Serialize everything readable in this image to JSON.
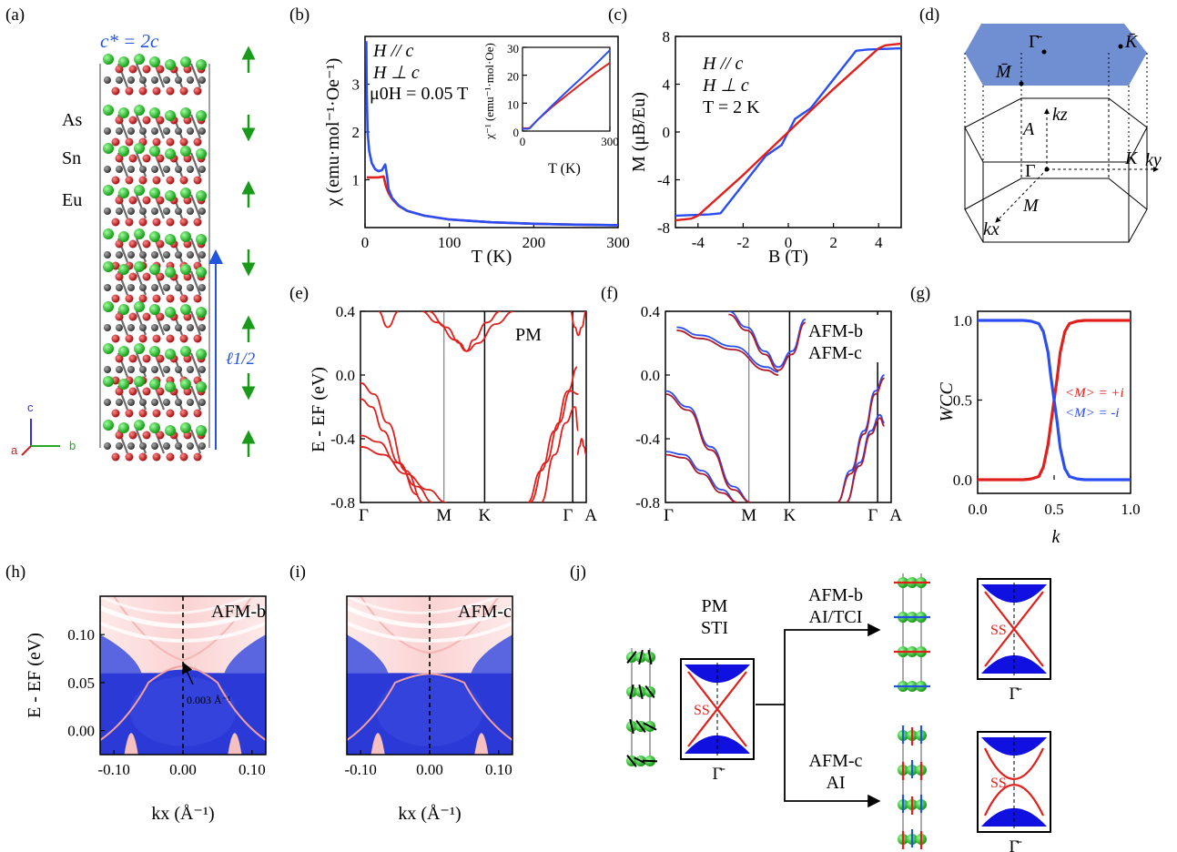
{
  "panel_labels": [
    "(a)",
    "(b)",
    "(c)",
    "(d)",
    "(e)",
    "(f)",
    "(g)",
    "(h)",
    "(i)",
    "(j)"
  ],
  "panel_a": {
    "title": "c* = 2c",
    "atoms": [
      "As",
      "Sn",
      "Eu"
    ],
    "atom_colors": {
      "As": "#cc1f1f",
      "Sn": "#555555",
      "Eu": "#22c02a"
    },
    "period_label": "ℓ1/2",
    "axis_labels": [
      "c",
      "a",
      "b"
    ]
  },
  "chart_data": [
    {
      "id": "b",
      "type": "line",
      "xlabel": "T (K)",
      "ylabel": "χ (emu·mol⁻¹·Oe⁻¹)",
      "xlim": [
        0,
        300
      ],
      "ylim": [
        0,
        4
      ],
      "xticks": [
        "0",
        "100",
        "200",
        "300"
      ],
      "yticks": [
        "1",
        "2",
        "3"
      ],
      "legend": [
        "H // c",
        "H ⊥ c"
      ],
      "note": "μ0H = 0.05 T",
      "series": [
        {
          "name": "H // c",
          "color": "#e0201c",
          "x": [
            2,
            5,
            10,
            15,
            20,
            22,
            25,
            28,
            32,
            40,
            50,
            70,
            100,
            150,
            200,
            250,
            300
          ],
          "y": [
            1.05,
            1.05,
            1.05,
            1.05,
            1.06,
            1.07,
            0.85,
            0.72,
            0.6,
            0.45,
            0.35,
            0.25,
            0.17,
            0.11,
            0.08,
            0.06,
            0.05
          ]
        },
        {
          "name": "H ⊥ c",
          "color": "#2b4ef2",
          "x": [
            1.5,
            2,
            3,
            5,
            8,
            12,
            16,
            20,
            24,
            26,
            28,
            32,
            40,
            50,
            70,
            100,
            150,
            200,
            250,
            300
          ],
          "y": [
            3.9,
            2.8,
            2.0,
            1.6,
            1.35,
            1.22,
            1.18,
            1.2,
            1.32,
            1.1,
            0.8,
            0.62,
            0.46,
            0.35,
            0.25,
            0.17,
            0.11,
            0.08,
            0.06,
            0.05
          ]
        }
      ],
      "inset": {
        "xlabel": "T (K)",
        "ylabel": "χ⁻¹ (emu⁻¹·mol·Oe)",
        "xlim": [
          0,
          300
        ],
        "ylim": [
          0,
          30
        ],
        "xticks": [
          "0",
          "300"
        ],
        "yticks": [
          "0",
          "10",
          "20",
          "30"
        ],
        "series": [
          {
            "name": "H // c",
            "color": "#e0201c",
            "x": [
              0,
              20,
              25,
              50,
              100,
              150,
              200,
              250,
              300
            ],
            "y": [
              1,
              1,
              1.2,
              3.8,
              8.5,
              12.7,
              16.8,
              20.8,
              24.5
            ]
          },
          {
            "name": "H ⊥ c",
            "color": "#2b4ef2",
            "x": [
              0,
              20,
              25,
              50,
              100,
              150,
              200,
              250,
              300
            ],
            "y": [
              0.8,
              0.8,
              1.0,
              3.8,
              9.0,
              14.0,
              18.8,
              23.8,
              29
            ]
          }
        ]
      }
    },
    {
      "id": "c",
      "type": "line",
      "xlabel": "B (T)",
      "ylabel": "M (μB/Eu)",
      "xlim": [
        -5,
        5
      ],
      "ylim": [
        -8,
        8
      ],
      "xticks": [
        "-4",
        "-2",
        "0",
        "2",
        "4"
      ],
      "yticks": [
        "-8",
        "-4",
        "0",
        "4",
        "8"
      ],
      "legend": [
        "H // c",
        "H ⊥ c"
      ],
      "note": "T = 2 K",
      "series": [
        {
          "name": "H // c",
          "color": "#e0201c",
          "x": [
            -5,
            -4.3,
            -4,
            -2,
            -1,
            0,
            1,
            2,
            4,
            4.3,
            5
          ],
          "y": [
            -7.4,
            -7.25,
            -7.0,
            -3.6,
            -1.8,
            0,
            1.8,
            3.6,
            7.0,
            7.25,
            7.4
          ]
        },
        {
          "name": "H ⊥ c",
          "color": "#2b4ef2",
          "x": [
            -5,
            -3.5,
            -3.0,
            -2,
            -1,
            -0.3,
            0,
            0.3,
            1,
            2,
            3.0,
            3.5,
            5
          ],
          "y": [
            -7.0,
            -6.9,
            -6.8,
            -4.4,
            -2.0,
            -1.1,
            0,
            1.1,
            2.0,
            4.4,
            6.8,
            6.9,
            7.0
          ]
        }
      ]
    },
    {
      "id": "e",
      "type": "line",
      "xlabel": "",
      "ylabel": "E - EF (eV)",
      "ylim": [
        -0.8,
        0.4
      ],
      "kpoints": [
        "Γ",
        "M",
        "K",
        "Γ",
        "A"
      ],
      "yticks": [
        "-0.8",
        "-0.4",
        "0.0",
        "0.4"
      ],
      "legend": [
        "PM"
      ],
      "series": [
        {
          "name": "PM",
          "color": "#e0201c",
          "x": [
            0,
            0.06,
            0.12,
            0.2,
            0.28
          ],
          "y": [
            -0.05,
            -0.12,
            -0.3,
            -0.6,
            -0.8
          ]
        },
        {
          "name": "PM",
          "color": "#e0201c",
          "x": [
            0,
            0.05,
            0.1,
            0.17,
            0.25
          ],
          "y": [
            -0.15,
            -0.2,
            -0.35,
            -0.55,
            -0.75
          ]
        },
        {
          "name": "PM",
          "color": "#e0201c",
          "x": [
            0,
            0.08,
            0.16,
            0.25,
            0.32
          ],
          "y": [
            -0.38,
            -0.42,
            -0.55,
            -0.7,
            -0.8
          ]
        },
        {
          "name": "PM",
          "color": "#e0201c",
          "x": [
            0,
            0.1,
            0.2,
            0.3,
            0.38
          ],
          "y": [
            -0.45,
            -0.5,
            -0.62,
            -0.72,
            -0.8
          ]
        },
        {
          "name": "PM",
          "color": "#e0201c",
          "x": [
            0.27,
            0.34,
            0.42,
            0.47,
            0.52,
            0.6,
            0.68
          ],
          "y": [
            0.4,
            0.33,
            0.22,
            0.15,
            0.2,
            0.32,
            0.4
          ]
        },
        {
          "name": "PM",
          "color": "#e0201c",
          "x": [
            0.3,
            0.38,
            0.44,
            0.47,
            0.5,
            0.56,
            0.62
          ],
          "y": [
            0.4,
            0.3,
            0.2,
            0.15,
            0.22,
            0.33,
            0.4
          ]
        },
        {
          "name": "PM",
          "color": "#e0201c",
          "x": [
            0.08,
            0.12,
            0.17
          ],
          "y": [
            0.4,
            0.3,
            0.4
          ]
        },
        {
          "name": "PM",
          "color": "#e0201c",
          "x": [
            0.74,
            0.8,
            0.86,
            0.92,
            0.96
          ],
          "y": [
            -0.8,
            -0.6,
            -0.35,
            -0.1,
            0.05
          ]
        },
        {
          "name": "PM",
          "color": "#e0201c",
          "x": [
            0.75,
            0.82,
            0.88,
            0.93,
            0.965
          ],
          "y": [
            -0.8,
            -0.55,
            -0.3,
            -0.1,
            -0.12
          ]
        },
        {
          "name": "PM",
          "color": "#e0201c",
          "x": [
            0.8,
            0.86,
            0.91,
            0.95,
            0.965
          ],
          "y": [
            -0.8,
            -0.5,
            -0.3,
            -0.2,
            -0.35
          ]
        },
        {
          "name": "PM",
          "color": "#e0201c",
          "x": [
            0.93,
            0.95,
            0.965,
            0.98,
            1.0
          ],
          "y": [
            0.4,
            0.3,
            0.25,
            0.3,
            0.4
          ]
        },
        {
          "name": "PM",
          "color": "#e0201c",
          "x": [
            0.96,
            0.97,
            0.98,
            0.99,
            1.0
          ],
          "y": [
            -0.5,
            -0.45,
            -0.4,
            -0.45,
            -0.5
          ]
        }
      ]
    },
    {
      "id": "f",
      "type": "line",
      "xlabel": "",
      "ylabel": "",
      "ylim": [
        -0.8,
        0.4
      ],
      "kpoints": [
        "Γ",
        "M",
        "K",
        "Γ",
        "A"
      ],
      "yticks": [
        "-0.8",
        "-0.4",
        "0.0",
        "0.4"
      ],
      "legend": [
        "AFM-b",
        "AFM-c"
      ],
      "series": [
        {
          "name": "AFM-b",
          "color": "#2b4ef2",
          "x": [
            0,
            0.1,
            0.2,
            0.3,
            0.38
          ],
          "y": [
            -0.1,
            -0.2,
            -0.45,
            -0.7,
            -0.8
          ]
        },
        {
          "name": "AFM-c",
          "color": "#b01a2a",
          "x": [
            0,
            0.1,
            0.2,
            0.3,
            0.38
          ],
          "y": [
            -0.12,
            -0.22,
            -0.47,
            -0.72,
            -0.8
          ]
        },
        {
          "name": "AFM-b",
          "color": "#2b4ef2",
          "x": [
            0,
            0.08,
            0.16,
            0.25,
            0.32
          ],
          "y": [
            -0.48,
            -0.5,
            -0.6,
            -0.72,
            -0.8
          ]
        },
        {
          "name": "AFM-c",
          "color": "#b01a2a",
          "x": [
            0,
            0.08,
            0.16,
            0.25,
            0.32
          ],
          "y": [
            -0.5,
            -0.52,
            -0.62,
            -0.74,
            -0.8
          ]
        },
        {
          "name": "AFM-b",
          "color": "#2b4ef2",
          "x": [
            0.05,
            0.15,
            0.3,
            0.45,
            0.5
          ],
          "y": [
            0.3,
            0.25,
            0.18,
            0.05,
            0.02
          ]
        },
        {
          "name": "AFM-c",
          "color": "#b01a2a",
          "x": [
            0.05,
            0.15,
            0.3,
            0.45,
            0.5
          ],
          "y": [
            0.28,
            0.23,
            0.16,
            0.03,
            0.0
          ]
        },
        {
          "name": "AFM-b",
          "color": "#2b4ef2",
          "x": [
            0.28,
            0.36,
            0.44,
            0.5,
            0.56,
            0.62
          ],
          "y": [
            0.4,
            0.3,
            0.15,
            0.05,
            0.15,
            0.35
          ]
        },
        {
          "name": "AFM-c",
          "color": "#b01a2a",
          "x": [
            0.28,
            0.36,
            0.44,
            0.5,
            0.56,
            0.62
          ],
          "y": [
            0.38,
            0.28,
            0.13,
            0.03,
            0.13,
            0.33
          ]
        },
        {
          "name": "AFM-b",
          "color": "#2b4ef2",
          "x": [
            0.76,
            0.82,
            0.88,
            0.93,
            0.97
          ],
          "y": [
            -0.8,
            -0.6,
            -0.35,
            -0.1,
            0.0
          ]
        },
        {
          "name": "AFM-c",
          "color": "#b01a2a",
          "x": [
            0.76,
            0.82,
            0.88,
            0.93,
            0.97
          ],
          "y": [
            -0.8,
            -0.62,
            -0.37,
            -0.12,
            -0.02
          ]
        },
        {
          "name": "AFM-b",
          "color": "#2b4ef2",
          "x": [
            0.8,
            0.86,
            0.91,
            0.95,
            0.97
          ],
          "y": [
            -0.8,
            -0.55,
            -0.35,
            -0.25,
            -0.3
          ]
        },
        {
          "name": "AFM-c",
          "color": "#b01a2a",
          "x": [
            0.8,
            0.86,
            0.91,
            0.95,
            0.97
          ],
          "y": [
            -0.8,
            -0.57,
            -0.37,
            -0.27,
            -0.32
          ]
        }
      ]
    },
    {
      "id": "g",
      "type": "scatter",
      "xlabel": "k",
      "ylabel": "WCC",
      "xlim": [
        0,
        1
      ],
      "ylim": [
        0,
        1
      ],
      "xticks": [
        "0.0",
        "0.5",
        "1.0"
      ],
      "yticks": [
        "0.0",
        "0.5",
        "1.0"
      ],
      "legend": [
        "<M> = +i",
        "<M> = -i"
      ],
      "series": [
        {
          "name": "<M> = +i",
          "color": "#e0201c",
          "x": [
            0,
            0.1,
            0.2,
            0.3,
            0.35,
            0.4,
            0.43,
            0.46,
            0.48,
            0.5,
            0.52,
            0.54,
            0.57,
            0.6,
            0.65,
            0.7,
            0.8,
            0.9,
            1.0
          ],
          "y": [
            0,
            0,
            0,
            0,
            0.005,
            0.02,
            0.08,
            0.22,
            0.36,
            0.5,
            0.64,
            0.8,
            0.93,
            0.98,
            0.995,
            1,
            1,
            1,
            1
          ]
        },
        {
          "name": "<M> = -i",
          "color": "#2b4ef2",
          "x": [
            0,
            0.1,
            0.2,
            0.3,
            0.35,
            0.4,
            0.43,
            0.46,
            0.48,
            0.5,
            0.52,
            0.54,
            0.57,
            0.6,
            0.65,
            0.7,
            0.8,
            0.9,
            1.0
          ],
          "y": [
            1,
            1,
            1,
            1,
            0.995,
            0.98,
            0.93,
            0.8,
            0.64,
            0.5,
            0.36,
            0.2,
            0.07,
            0.02,
            0.005,
            0,
            0,
            0,
            0
          ]
        }
      ]
    },
    {
      "id": "h",
      "type": "heatmap",
      "xlabel": "kx (Å⁻¹)",
      "ylabel": "E - EF (eV)",
      "xlim": [
        -0.12,
        0.12
      ],
      "ylim": [
        -0.025,
        0.14
      ],
      "xticks": [
        "-0.10",
        "0.00",
        "0.10"
      ],
      "yticks": [
        "0.00",
        "0.05",
        "0.10"
      ],
      "label": "AFM-b",
      "annotation": "0.003 Å⁻¹",
      "gap_eV": 0.006
    },
    {
      "id": "i",
      "type": "heatmap",
      "xlabel": "kx (Å⁻¹)",
      "ylabel": "",
      "xlim": [
        -0.12,
        0.12
      ],
      "ylim": [
        -0.025,
        0.14
      ],
      "xticks": [
        "-0.10",
        "0.00",
        "0.10"
      ],
      "yticks": [
        "0.00",
        "0.05",
        "0.10"
      ],
      "label": "AFM-c",
      "gap_eV": 0.022
    }
  ],
  "panel_d": {
    "labels": [
      "Γ̄",
      "K̄",
      "M̄",
      "A",
      "kz",
      "K",
      "ky",
      "Γ",
      "M",
      "kx"
    ],
    "surface_color": "#6f8fd2"
  },
  "panel_j": {
    "pm_label1": "PM",
    "pm_label2": "STI",
    "afmb_label1": "AFM-b",
    "afmb_label2": "AI/TCI",
    "afmc_label1": "AFM-c",
    "afmc_label2": "AI",
    "ss": "SS",
    "gamma_bar": "Γ̄",
    "fill_color": "#1010e0",
    "ss_color": "#e0201c"
  }
}
